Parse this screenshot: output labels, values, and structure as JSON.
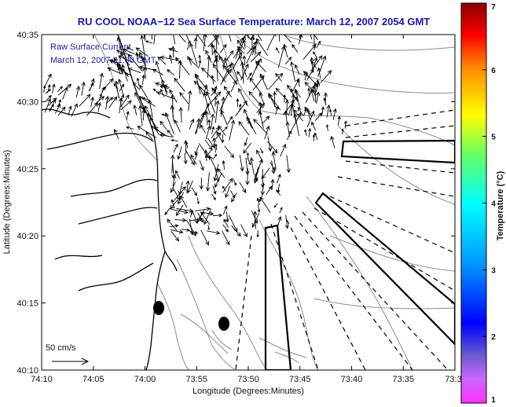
{
  "title": "RU COOL  NOAA−12  Sea Surface Temperature:  March 12, 2007 2054 GMT",
  "legend": {
    "line1": "Raw Surface Current",
    "line2": "March 12, 2007 21:00 GMT"
  },
  "scale_label": "50 cm/s",
  "axes": {
    "xlabel": "Longitude (Degrees:Minutes)",
    "ylabel": "Latitude (Degrees:Minutes)",
    "xticks": [
      "74:10",
      "74:05",
      "74:00",
      "73:55",
      "73:50",
      "73:45",
      "73:40",
      "73:35",
      "73:3"
    ],
    "yticks": [
      "40:35",
      "40:30",
      "40:25",
      "40:20",
      "40:15",
      "40:10"
    ]
  },
  "colorbar": {
    "label": "Temperature (°C)",
    "ticks": [
      "7",
      "6",
      "5",
      "4",
      "3",
      "2",
      "1"
    ],
    "range": [
      1,
      7
    ]
  },
  "colors": {
    "title": "#1a1aa8",
    "coast": "#000000",
    "contour": "#8c8c8c",
    "arrow": "#000000"
  }
}
